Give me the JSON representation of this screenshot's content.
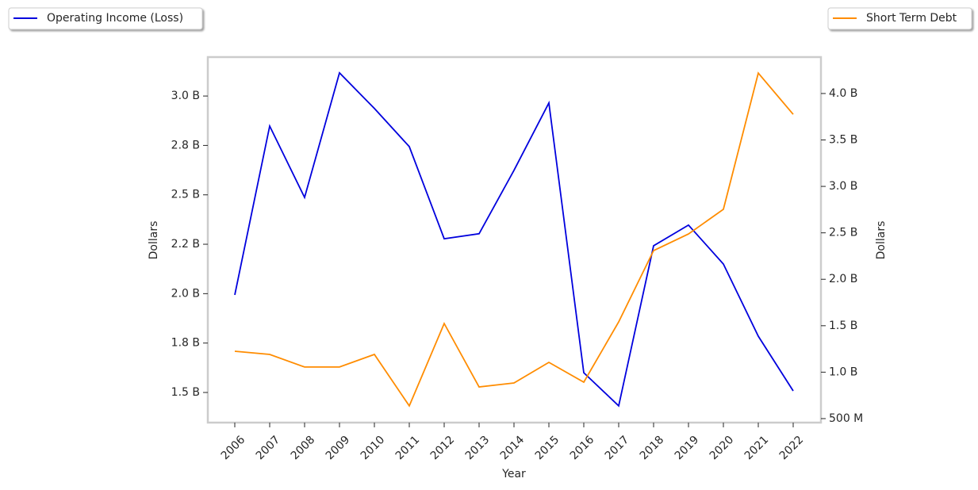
{
  "chart_data": {
    "type": "line",
    "xlabel": "Year",
    "ylabel": "Dollars",
    "y2label": "Dollars",
    "categories": [
      "2006",
      "2007",
      "2008",
      "2009",
      "2010",
      "2011",
      "2012",
      "2013",
      "2014",
      "2015",
      "2016",
      "2017",
      "2018",
      "2019",
      "2020",
      "2021",
      "2022"
    ],
    "series": [
      {
        "name": "Operating Income (Loss)",
        "color": "#0000dd",
        "axis": "y",
        "values": [
          1994000000,
          2848000000,
          2487000000,
          3117000000,
          2937000000,
          2744000000,
          2278000000,
          2303000000,
          2624000000,
          2965000000,
          1600000000,
          1432000000,
          2242000000,
          2347000000,
          2150000000,
          1785000000,
          1508000000
        ]
      },
      {
        "name": "Short Term Debt",
        "color": "#ff8c00",
        "axis": "y2",
        "values": [
          1225000000,
          1191000000,
          1055000000,
          1055000000,
          1191000000,
          637000000,
          1524000000,
          841000000,
          884000000,
          1106000000,
          892000000,
          1541000000,
          2309000000,
          2488000000,
          2753000000,
          4220000000,
          3776000000
        ]
      }
    ],
    "ylim": [
      1347500000,
      3197000000
    ],
    "yticks": [
      {
        "value": 1500000000,
        "label": "1.5 B"
      },
      {
        "value": 1750000000,
        "label": "1.8 B"
      },
      {
        "value": 2000000000,
        "label": "2.0 B"
      },
      {
        "value": 2250000000,
        "label": "2.2 B"
      },
      {
        "value": 2500000000,
        "label": "2.5 B"
      },
      {
        "value": 2750000000,
        "label": "2.8 B"
      },
      {
        "value": 3000000000,
        "label": "3.0 B"
      }
    ],
    "y2lim": [
      457000000,
      4392000000
    ],
    "y2ticks": [
      {
        "value": 500000000,
        "label": "500 M"
      },
      {
        "value": 1000000000,
        "label": "1.0 B"
      },
      {
        "value": 1500000000,
        "label": "1.5 B"
      },
      {
        "value": 2000000000,
        "label": "2.0 B"
      },
      {
        "value": 2500000000,
        "label": "2.5 B"
      },
      {
        "value": 3000000000,
        "label": "3.0 B"
      },
      {
        "value": 3500000000,
        "label": "3.5 B"
      },
      {
        "value": 4000000000,
        "label": "4.0 B"
      }
    ]
  }
}
